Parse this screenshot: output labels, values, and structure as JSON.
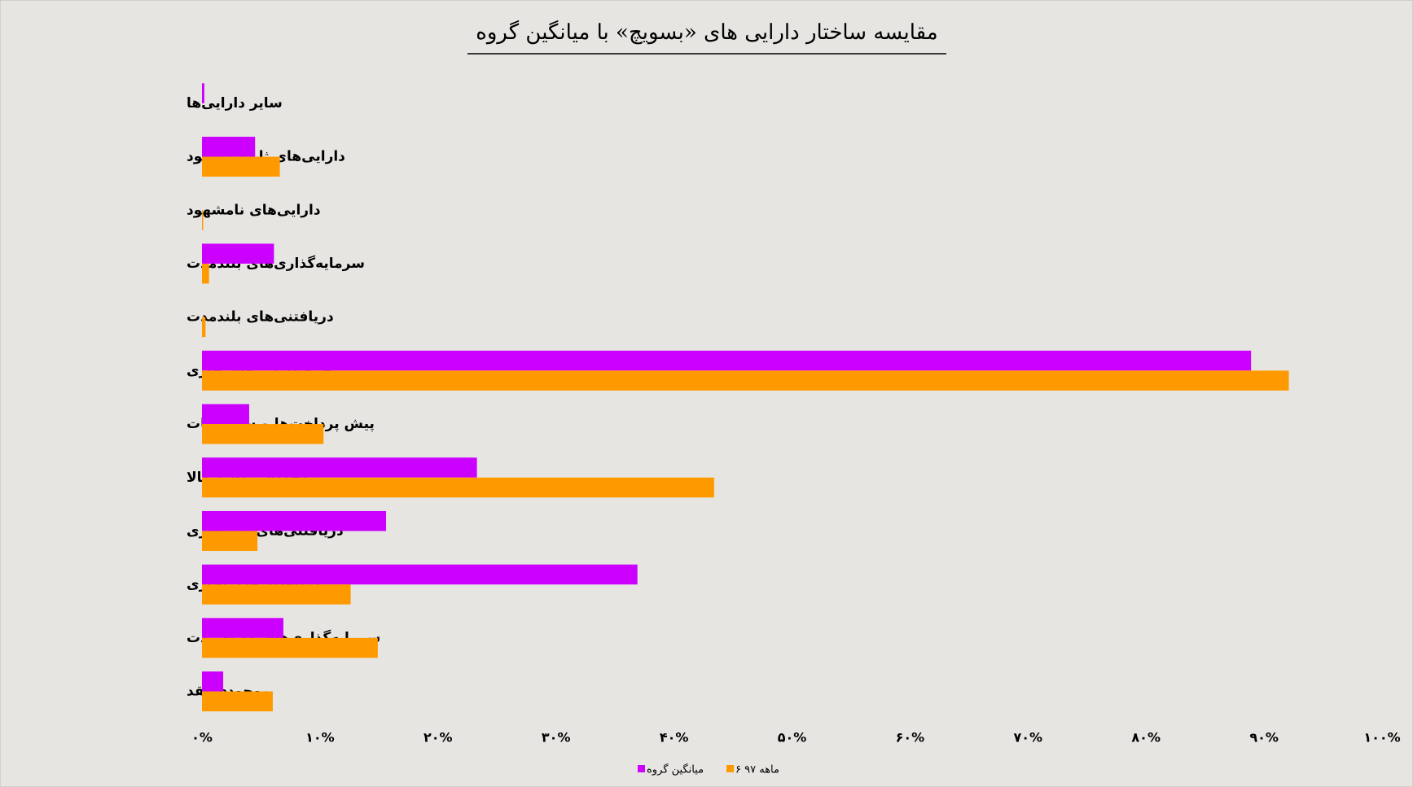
{
  "chart_data": {
    "type": "hbar",
    "title": "مقایسه ساختار دارایی های «بسویچ» با میانگین گروه",
    "categories": [
      "سایر دارایی‌ها",
      "دارایی‌های ثابت مشهود",
      "دارایی‌های نامشهود",
      "سرمایه‌گذاری‌های بلندمدت",
      "دریافتنی‌های بلندمدت",
      "جمع دارایی‌های جاری",
      "پیش پرداخت‌ها و سفارشات",
      "موجودی مواد و کالا",
      "دریافتنی‌های غیرتجاری",
      "دریافتنی‌های تجاری",
      "سرمایه‌گذاری‌های کوتاه مدت",
      "موجودی نقد"
    ],
    "series": [
      {
        "name": "میانگین گروه",
        "color": "#cc00ff",
        "values": [
          0.2,
          4.5,
          0,
          6.1,
          0,
          88.9,
          4.0,
          23.3,
          15.6,
          36.9,
          6.9,
          1.8
        ]
      },
      {
        "name": "۶ ماهه ۹۷",
        "color": "#ff9900",
        "values": [
          0,
          6.6,
          0.1,
          0.6,
          0.3,
          92.1,
          10.3,
          43.4,
          4.7,
          12.6,
          14.9,
          6.0
        ]
      }
    ],
    "xlim": [
      0,
      100
    ],
    "xticks": [
      {
        "value": 0,
        "label": "۰%"
      },
      {
        "value": 10,
        "label": "۱۰%"
      },
      {
        "value": 20,
        "label": "۲۰%"
      },
      {
        "value": 30,
        "label": "۳۰%"
      },
      {
        "value": 40,
        "label": "۴۰%"
      },
      {
        "value": 50,
        "label": "۵۰%"
      },
      {
        "value": 60,
        "label": "۶۰%"
      },
      {
        "value": 70,
        "label": "۷۰%"
      },
      {
        "value": 80,
        "label": "۸۰%"
      },
      {
        "value": 90,
        "label": "۹۰%"
      },
      {
        "value": 100,
        "label": "۱۰۰%"
      }
    ],
    "grid": false,
    "legend": "bottom"
  }
}
